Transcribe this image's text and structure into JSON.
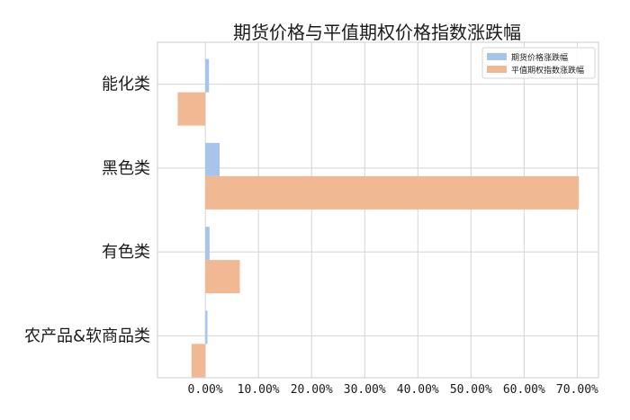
{
  "chart_data": {
    "type": "bar",
    "orientation": "horizontal",
    "title": "期货价格与平值期权价格指数涨跌幅",
    "xlabel": "",
    "ylabel": "",
    "categories": [
      "能化类",
      "黑色类",
      "有色类",
      "农产品&软商品类"
    ],
    "series": [
      {
        "name": "期货价格涨跌幅",
        "color": "#a7c5eb",
        "values": [
          0.7,
          2.7,
          0.8,
          0.4
        ]
      },
      {
        "name": "平值期权指数涨跌幅",
        "color": "#f0b893",
        "values": [
          -5.2,
          70.3,
          6.5,
          -2.6
        ]
      }
    ],
    "xlim": [
      -9,
      74
    ],
    "xticks": [
      0,
      10,
      20,
      30,
      40,
      50,
      60,
      70
    ],
    "xtick_labels": [
      "0.00%",
      "10.00%",
      "20.00%",
      "30.00%",
      "40.00%",
      "50.00%",
      "60.00%",
      "70.00%"
    ],
    "grid": true,
    "legend_position": "top-right"
  }
}
